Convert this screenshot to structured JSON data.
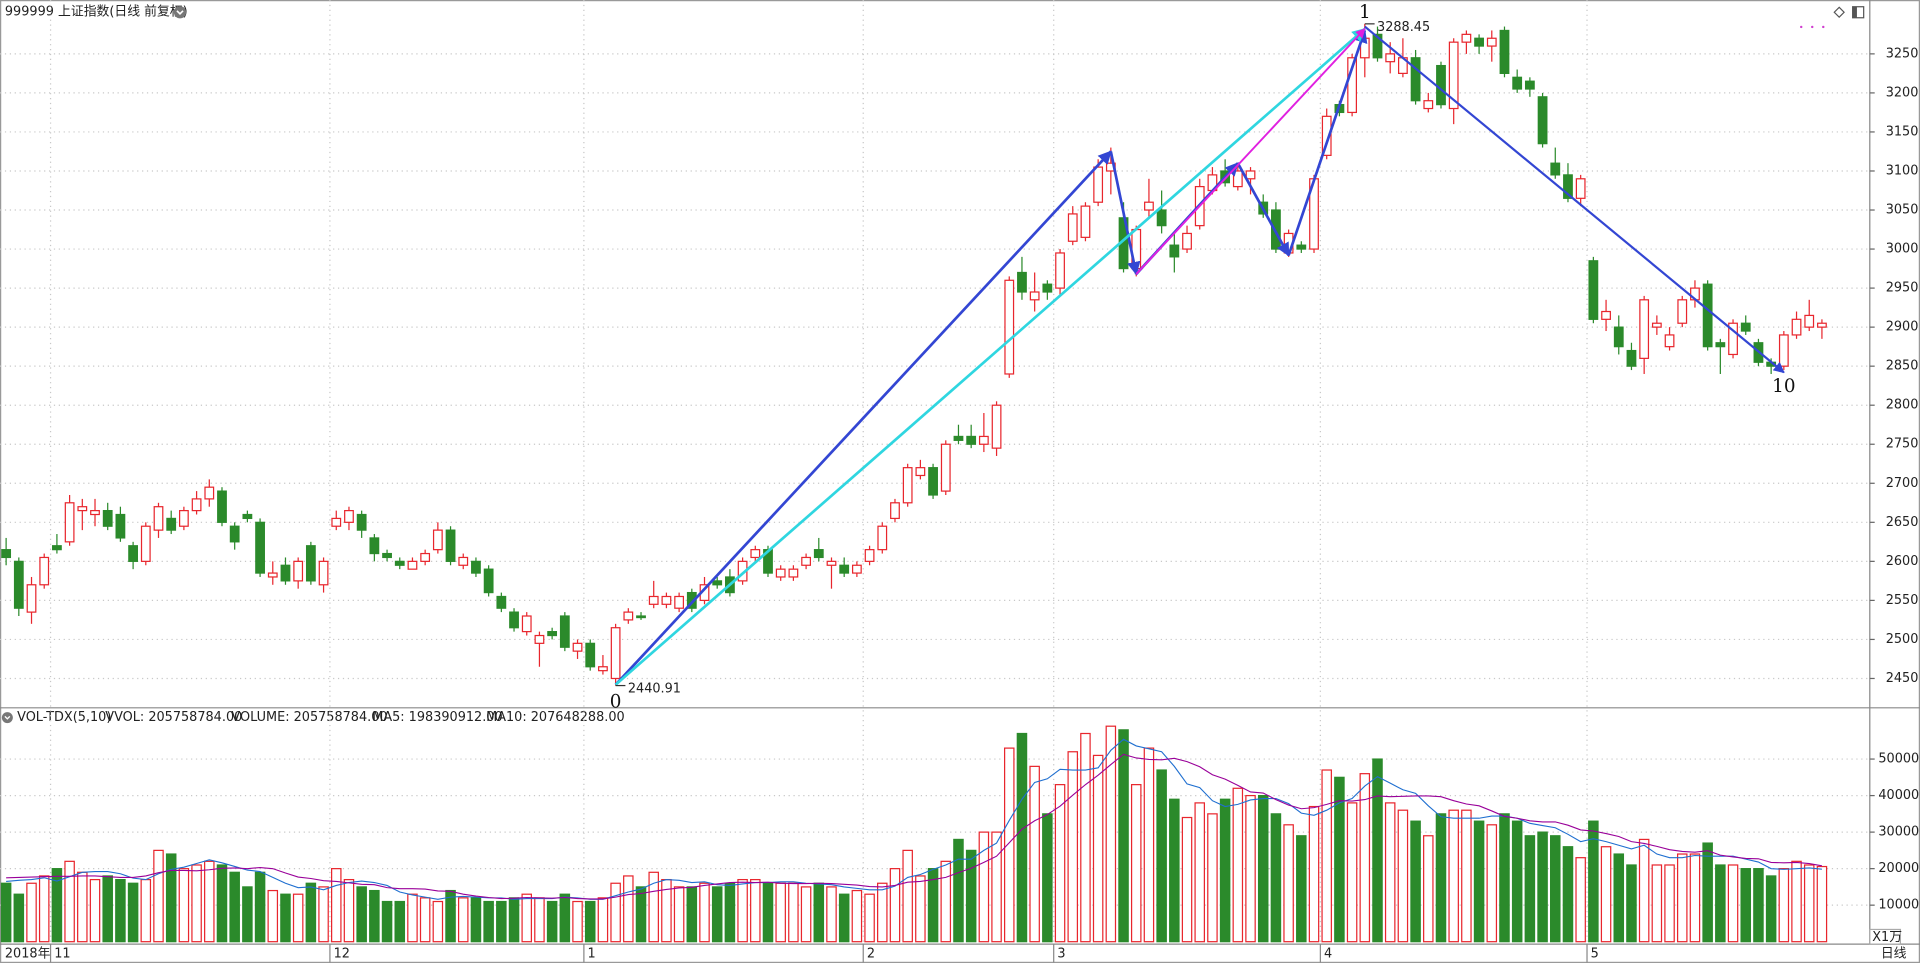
{
  "chart_data": [
    {
      "type": "candlestick",
      "title": "999999 上证指数(日线 前复权)",
      "year_label": "2018年",
      "period": "日线",
      "up_color": "#e8262d",
      "down_color": "#2b8a2b",
      "ylim": [
        2414,
        3319
      ],
      "yticks": [
        2450,
        2500,
        2550,
        2600,
        2650,
        2700,
        2750,
        2800,
        2850,
        2900,
        2950,
        3000,
        3050,
        3100,
        3150,
        3200,
        3250
      ],
      "grid": true,
      "x_labels": [
        {
          "index": 4,
          "label": "11"
        },
        {
          "index": 26,
          "label": "12"
        },
        {
          "index": 46,
          "label": "1"
        },
        {
          "index": 68,
          "label": "2"
        },
        {
          "index": 83,
          "label": "3"
        },
        {
          "index": 104,
          "label": "4"
        },
        {
          "index": 125,
          "label": "5"
        }
      ],
      "open": [
        2615,
        2600,
        2535,
        2570,
        2620,
        2625,
        2665,
        2660,
        2665,
        2660,
        2620,
        2600,
        2640,
        2655,
        2645,
        2665,
        2680,
        2690,
        2645,
        2660,
        2650,
        2580,
        2595,
        2575,
        2620,
        2570,
        2645,
        2650,
        2660,
        2630,
        2610,
        2600,
        2590,
        2600,
        2615,
        2640,
        2595,
        2600,
        2590,
        2555,
        2535,
        2510,
        2495,
        2510,
        2530,
        2485,
        2495,
        2460,
        2450,
        2525,
        2530,
        2545,
        2545,
        2540,
        2560,
        2550,
        2575,
        2580,
        2575,
        2605,
        2615,
        2580,
        2580,
        2595,
        2615,
        2595,
        2595,
        2585,
        2600,
        2615,
        2655,
        2675,
        2710,
        2720,
        2690,
        2760,
        2760,
        2750,
        2745,
        2840,
        2970,
        2935,
        2955,
        2950,
        3010,
        3015,
        3060,
        3100,
        3040,
        2975,
        3050,
        3050,
        3005,
        3000,
        3030,
        3075,
        3100,
        3080,
        3090,
        3060,
        3050,
        2995,
        3005,
        3000,
        3120,
        3185,
        3175,
        3245,
        3275,
        3240,
        3225,
        3245,
        3180,
        3235,
        3180,
        3265,
        3270,
        3260,
        3280,
        3220,
        3215,
        3195,
        3110,
        3095,
        3065,
        2985,
        2910,
        2900,
        2870,
        2860,
        2900,
        2875,
        2905,
        2935,
        2955,
        2880,
        2865,
        2905,
        2880,
        2855,
        2850,
        2890,
        2900,
        2900
      ],
      "high": [
        2630,
        2605,
        2580,
        2610,
        2635,
        2685,
        2680,
        2680,
        2675,
        2670,
        2625,
        2650,
        2675,
        2665,
        2670,
        2690,
        2705,
        2695,
        2650,
        2665,
        2655,
        2600,
        2605,
        2605,
        2625,
        2605,
        2665,
        2670,
        2665,
        2635,
        2615,
        2605,
        2605,
        2615,
        2650,
        2645,
        2610,
        2605,
        2595,
        2560,
        2540,
        2535,
        2510,
        2515,
        2535,
        2500,
        2500,
        2480,
        2520,
        2540,
        2535,
        2575,
        2560,
        2560,
        2565,
        2580,
        2580,
        2590,
        2605,
        2620,
        2620,
        2595,
        2595,
        2610,
        2630,
        2605,
        2605,
        2600,
        2620,
        2650,
        2680,
        2725,
        2730,
        2725,
        2755,
        2775,
        2775,
        2790,
        2805,
        2965,
        2990,
        2970,
        2960,
        3000,
        3055,
        3060,
        3115,
        3130,
        3060,
        3030,
        3090,
        3075,
        3020,
        3030,
        3090,
        3105,
        3115,
        3110,
        3105,
        3070,
        3060,
        3025,
        3010,
        3095,
        3180,
        3190,
        3250,
        3288.45,
        3285,
        3265,
        3270,
        3255,
        3200,
        3240,
        3270,
        3280,
        3275,
        3280,
        3285,
        3230,
        3220,
        3200,
        3130,
        3110,
        3095,
        2990,
        2935,
        2915,
        2880,
        2940,
        2915,
        2900,
        2940,
        2960,
        2960,
        2885,
        2910,
        2915,
        2885,
        2860,
        2895,
        2920,
        2935,
        2910
      ],
      "low": [
        2595,
        2530,
        2520,
        2565,
        2610,
        2620,
        2640,
        2645,
        2640,
        2625,
        2590,
        2595,
        2630,
        2635,
        2640,
        2660,
        2670,
        2645,
        2615,
        2650,
        2580,
        2570,
        2570,
        2565,
        2570,
        2560,
        2640,
        2640,
        2630,
        2600,
        2600,
        2590,
        2590,
        2595,
        2610,
        2595,
        2590,
        2580,
        2555,
        2535,
        2510,
        2505,
        2465,
        2500,
        2485,
        2475,
        2460,
        2455,
        2440.91,
        2520,
        2525,
        2540,
        2540,
        2535,
        2535,
        2545,
        2565,
        2555,
        2570,
        2600,
        2580,
        2575,
        2575,
        2590,
        2600,
        2565,
        2580,
        2580,
        2595,
        2610,
        2650,
        2670,
        2705,
        2680,
        2685,
        2750,
        2745,
        2740,
        2735,
        2835,
        2935,
        2920,
        2935,
        2940,
        3005,
        3010,
        3055,
        3070,
        2970,
        2965,
        3040,
        3020,
        2970,
        2995,
        3025,
        3070,
        3080,
        3075,
        3070,
        3040,
        2995,
        2990,
        2995,
        2995,
        3115,
        3170,
        3170,
        3220,
        3240,
        3225,
        3220,
        3185,
        3175,
        3180,
        3160,
        3250,
        3250,
        3240,
        3220,
        3200,
        3195,
        3130,
        3090,
        3060,
        3055,
        2905,
        2895,
        2865,
        2845,
        2840,
        2890,
        2870,
        2900,
        2925,
        2870,
        2840,
        2860,
        2890,
        2850,
        2840,
        2845,
        2885,
        2895,
        2885
      ],
      "close": [
        2605,
        2540,
        2570,
        2605,
        2615,
        2675,
        2670,
        2665,
        2645,
        2630,
        2600,
        2645,
        2670,
        2640,
        2665,
        2680,
        2695,
        2650,
        2625,
        2655,
        2585,
        2585,
        2575,
        2600,
        2575,
        2600,
        2655,
        2665,
        2640,
        2610,
        2605,
        2595,
        2600,
        2610,
        2640,
        2600,
        2605,
        2585,
        2560,
        2540,
        2515,
        2530,
        2505,
        2505,
        2490,
        2495,
        2465,
        2465,
        2515,
        2535,
        2528,
        2555,
        2555,
        2555,
        2540,
        2570,
        2570,
        2560,
        2600,
        2615,
        2585,
        2590,
        2590,
        2605,
        2605,
        2600,
        2585,
        2595,
        2615,
        2645,
        2675,
        2720,
        2720,
        2685,
        2750,
        2755,
        2750,
        2760,
        2800,
        2960,
        2945,
        2945,
        2945,
        2995,
        3045,
        3055,
        3105,
        3110,
        2975,
        3025,
        3060,
        3030,
        2990,
        3020,
        3080,
        3095,
        3085,
        3100,
        3100,
        3045,
        3000,
        3020,
        3000,
        3090,
        3170,
        3175,
        3245,
        3270,
        3245,
        3250,
        3245,
        3190,
        3190,
        3185,
        3265,
        3275,
        3260,
        3270,
        3225,
        3205,
        3205,
        3135,
        3095,
        3065,
        3090,
        2910,
        2920,
        2875,
        2850,
        2935,
        2905,
        2890,
        2935,
        2950,
        2875,
        2875,
        2905,
        2895,
        2855,
        2850,
        2890,
        2910,
        2915,
        2905
      ],
      "extremes": [
        {
          "field": "low",
          "index": 48
        },
        {
          "field": "high",
          "index": 107
        }
      ],
      "waves": [
        {
          "color": "#3346d3",
          "width": 2.2,
          "from": [
            48,
            2442
          ],
          "to": [
            87,
            3125
          ]
        },
        {
          "color": "#3346d3",
          "width": 2.2,
          "from": [
            87,
            3125
          ],
          "to": [
            89,
            2968
          ]
        },
        {
          "color": "#3346d3",
          "width": 2.2,
          "from": [
            89,
            2968
          ],
          "to": [
            97,
            3110
          ]
        },
        {
          "color": "#3346d3",
          "width": 2.2,
          "from": [
            97,
            3110
          ],
          "to": [
            101,
            2992
          ]
        },
        {
          "color": "#3346d3",
          "width": 2.2,
          "from": [
            101,
            2992
          ],
          "to": [
            107,
            3280
          ]
        },
        {
          "color": "#3346d3",
          "width": 1.8,
          "from": [
            107,
            3285
          ],
          "to": [
            140,
            2842
          ]
        },
        {
          "color": "#2fd6e0",
          "width": 2.2,
          "from": [
            48,
            2442
          ],
          "to": [
            107,
            3282
          ]
        },
        {
          "color": "#e020e0",
          "width": 1.6,
          "from": [
            89,
            2968
          ],
          "to": [
            107,
            3282
          ]
        }
      ],
      "wave_labels": [
        {
          "text": "0",
          "index": 48,
          "side": "below"
        },
        {
          "text": "1",
          "index": 107,
          "side": "above"
        },
        {
          "text": "10",
          "index": 140,
          "side": "below"
        }
      ]
    },
    {
      "type": "bar",
      "title": "VOL-TDX(5,10)",
      "vvol_label": "VVOL: 205758784.00",
      "volume_label": "VOLUME: 205758784.00",
      "label_color": "#1f6fd0",
      "unit": "X1万",
      "ylim": [
        0,
        63700
      ],
      "yticks": [
        10000,
        20000,
        30000,
        40000,
        50000
      ],
      "values": [
        16000,
        13000,
        16000,
        18000,
        20000,
        22000,
        19000,
        17000,
        18000,
        17000,
        16000,
        17000,
        25000,
        24000,
        20000,
        21000,
        22000,
        21000,
        19000,
        15000,
        19000,
        14000,
        13000,
        13000,
        16000,
        15000,
        20000,
        17000,
        15000,
        14000,
        11000,
        11000,
        13000,
        12000,
        11000,
        14000,
        12000,
        12000,
        11000,
        11000,
        12000,
        13000,
        12000,
        11000,
        13000,
        11000,
        11000,
        12000,
        16000,
        18000,
        15000,
        19000,
        17000,
        15000,
        15000,
        16000,
        15000,
        16000,
        17000,
        17000,
        16000,
        16000,
        16000,
        15000,
        16000,
        15000,
        13000,
        14000,
        13000,
        16000,
        20000,
        25000,
        18000,
        20000,
        22000,
        28000,
        25000,
        30000,
        30000,
        53000,
        57000,
        48000,
        35000,
        43000,
        52000,
        57000,
        51000,
        59000,
        58000,
        43000,
        53000,
        47000,
        39000,
        34000,
        38000,
        35000,
        39000,
        42000,
        40000,
        40000,
        35000,
        32000,
        29000,
        37000,
        47000,
        45000,
        38000,
        46000,
        50000,
        38000,
        36000,
        33000,
        29000,
        35000,
        36000,
        36000,
        33000,
        32000,
        35000,
        33000,
        29000,
        30000,
        29000,
        26000,
        23000,
        33000,
        26000,
        24000,
        21000,
        28000,
        21000,
        21000,
        24000,
        24000,
        27000,
        21000,
        21000,
        20000,
        20000,
        18000,
        20000,
        22000,
        21000,
        20576
      ],
      "series": [
        {
          "label": "MA5: 198390912.00",
          "color": "#1f6fd0",
          "values": [
            16500,
            16800,
            17000,
            17500,
            16600,
            17800,
            19000,
            19200,
            19200,
            18600,
            17400,
            17000,
            18600,
            19800,
            20400,
            21400,
            22400,
            21600,
            20600,
            19600,
            19200,
            17600,
            16000,
            14800,
            15000,
            14200,
            15400,
            16200,
            16600,
            16200,
            15400,
            13600,
            12800,
            12200,
            11600,
            12200,
            12400,
            12200,
            12000,
            12000,
            11600,
            11800,
            11800,
            11800,
            12200,
            12000,
            11600,
            11600,
            12600,
            13600,
            14400,
            16000,
            17000,
            16800,
            16200,
            16400,
            15600,
            15400,
            15800,
            16200,
            16200,
            16400,
            16400,
            16000,
            15800,
            15600,
            15000,
            14600,
            14200,
            14200,
            15200,
            17600,
            18400,
            19800,
            21000,
            22600,
            22600,
            25000,
            27000,
            33200,
            39000,
            43600,
            44600,
            47200,
            47000,
            47000,
            47600,
            52400,
            55400,
            53600,
            52800,
            52000,
            48000,
            43200,
            42200,
            38600,
            37000,
            37600,
            38800,
            39200,
            39200,
            37800,
            35200,
            34600,
            36000,
            38000,
            39200,
            42600,
            45200,
            43400,
            41600,
            40600,
            37200,
            34200,
            33800,
            33800,
            33800,
            34400,
            34400,
            33800,
            32400,
            31800,
            31200,
            29400,
            27400,
            28200,
            27400,
            26400,
            25400,
            26400,
            24000,
            23000,
            23000,
            23600,
            23400,
            23400,
            23400,
            22600,
            21800,
            20000,
            19800,
            20000,
            20200,
            19839
          ]
        },
        {
          "label": "MA10: 207648288.00",
          "color": "#990099",
          "values": [
            17500,
            17600,
            17700,
            17800,
            17900,
            17900,
            18000,
            18000,
            17800,
            17600,
            17600,
            18000,
            18900,
            19500,
            19500,
            19400,
            19700,
            20100,
            20200,
            20000,
            20300,
            20000,
            18800,
            17700,
            17300,
            16700,
            16500,
            16100,
            15700,
            15600,
            14800,
            14500,
            14500,
            14400,
            13900,
            13800,
            13000,
            12500,
            12100,
            11800,
            11900,
            12100,
            12000,
            11900,
            12100,
            11800,
            11700,
            11700,
            12200,
            12900,
            13200,
            13800,
            14300,
            14700,
            14900,
            15400,
            15800,
            16200,
            16300,
            16200,
            16300,
            16000,
            15900,
            15900,
            16000,
            15900,
            15700,
            15500,
            15100,
            15000,
            15400,
            16300,
            16500,
            17000,
            17600,
            18900,
            20100,
            21700,
            23400,
            27100,
            30800,
            33100,
            34800,
            37100,
            40100,
            43000,
            45600,
            48500,
            51300,
            50300,
            49900,
            49800,
            50200,
            49300,
            47900,
            45700,
            44500,
            42800,
            41000,
            40700,
            38900,
            37400,
            36400,
            36700,
            37600,
            38600,
            38500,
            38900,
            39900,
            39700,
            39800,
            39900,
            39900,
            39700,
            38600,
            37700,
            37200,
            35800,
            34300,
            33800,
            33100,
            32800,
            32800,
            31900,
            30600,
            30300,
            29600,
            28800,
            27400,
            26900,
            26100,
            25200,
            24700,
            24500,
            24900,
            23700,
            23200,
            22800,
            22700,
            21700,
            21600,
            21700,
            21400,
            20765
          ]
        }
      ]
    }
  ]
}
